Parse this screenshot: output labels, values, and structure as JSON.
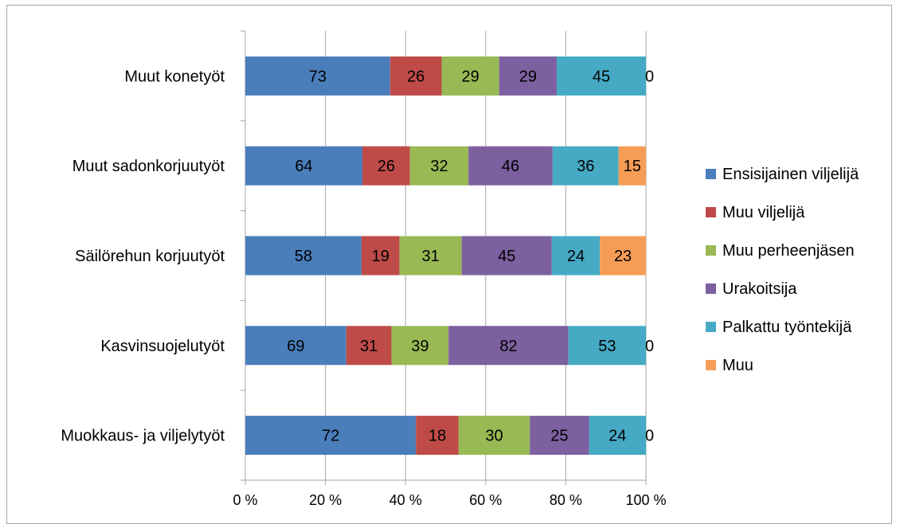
{
  "chart_data": {
    "type": "bar",
    "orientation": "horizontal",
    "stacked": "percent",
    "categories": [
      "Muut konetyöt",
      "Muut sadonkorjuutyöt",
      "Säilörehun korjuutyöt",
      "Kasvinsuojelutyöt",
      "Muokkaus- ja viljelytyöt"
    ],
    "series": [
      {
        "name": "Ensisijainen viljelijä",
        "color": "#4a7ebb",
        "values": [
          73,
          64,
          58,
          69,
          72
        ]
      },
      {
        "name": "Muu viljelijä",
        "color": "#be4b48",
        "values": [
          26,
          26,
          19,
          31,
          18
        ]
      },
      {
        "name": "Muu perheenjäsen",
        "color": "#98b954",
        "values": [
          29,
          32,
          31,
          39,
          30
        ]
      },
      {
        "name": "Urakoitsija",
        "color": "#7d60a0",
        "values": [
          29,
          46,
          45,
          82,
          25
        ]
      },
      {
        "name": "Palkattu työntekijä",
        "color": "#46aac5",
        "values": [
          45,
          36,
          24,
          53,
          24
        ]
      },
      {
        "name": "Muu",
        "color": "#f59d56",
        "values": [
          0,
          15,
          23,
          0,
          0
        ]
      }
    ],
    "x_ticks": [
      "0 %",
      "20 %",
      "40 %",
      "60 %",
      "80 %",
      "100 %"
    ],
    "xlim": [
      0,
      100
    ],
    "grid": true,
    "legend_position": "right",
    "title": "",
    "xlabel": "",
    "ylabel": ""
  }
}
